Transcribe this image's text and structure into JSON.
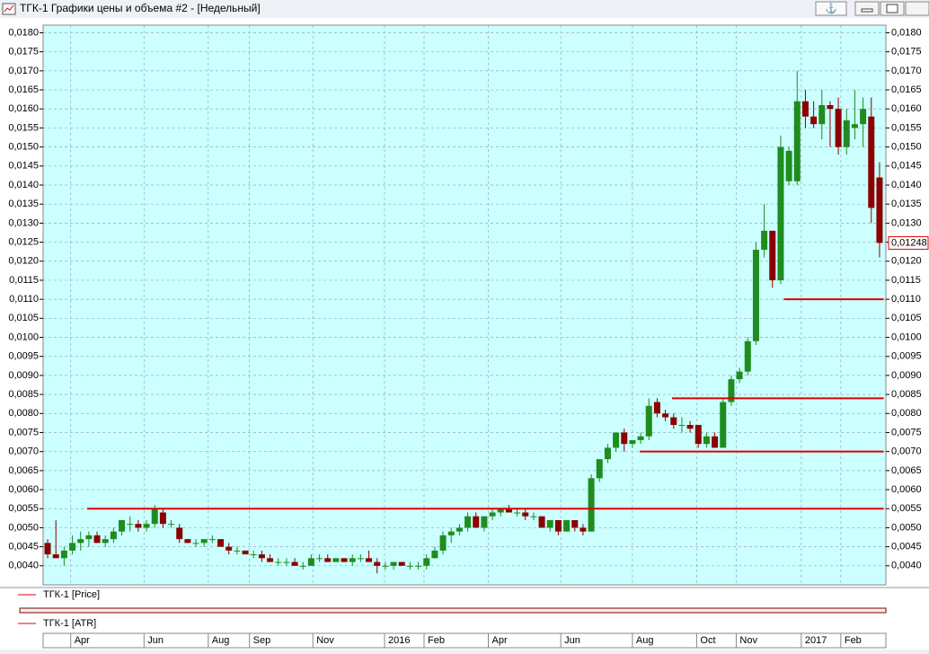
{
  "window_title": "ТГК-1 Графики цены и объема #2 - [Недельный]",
  "chart_data": {
    "type": "candlestick",
    "background": "#ccffff",
    "up_color": "#1e8c1e",
    "down_color": "#8b0000",
    "level_color": "#e00000",
    "grid": true,
    "ylim": [
      0.0035,
      0.0182
    ],
    "yticks": [
      {
        "value": 0.004,
        "label": "0,0040"
      },
      {
        "value": 0.0045,
        "label": "0,0045"
      },
      {
        "value": 0.005,
        "label": "0,0050"
      },
      {
        "value": 0.0055,
        "label": "0,0055"
      },
      {
        "value": 0.006,
        "label": "0,0060"
      },
      {
        "value": 0.0065,
        "label": "0,0065"
      },
      {
        "value": 0.007,
        "label": "0,0070"
      },
      {
        "value": 0.0075,
        "label": "0,0075"
      },
      {
        "value": 0.008,
        "label": "0,0080"
      },
      {
        "value": 0.0085,
        "label": "0,0085"
      },
      {
        "value": 0.009,
        "label": "0,0090"
      },
      {
        "value": 0.0095,
        "label": "0,0095"
      },
      {
        "value": 0.01,
        "label": "0,0100"
      },
      {
        "value": 0.0105,
        "label": "0,0105"
      },
      {
        "value": 0.011,
        "label": "0,0110"
      },
      {
        "value": 0.0115,
        "label": "0,0115"
      },
      {
        "value": 0.012,
        "label": "0,0120"
      },
      {
        "value": 0.0125,
        "label": "0,0125"
      },
      {
        "value": 0.013,
        "label": "0,0130"
      },
      {
        "value": 0.0135,
        "label": "0,0135"
      },
      {
        "value": 0.014,
        "label": "0,0140"
      },
      {
        "value": 0.0145,
        "label": "0,0145"
      },
      {
        "value": 0.015,
        "label": "0,0150"
      },
      {
        "value": 0.0155,
        "label": "0,0155"
      },
      {
        "value": 0.016,
        "label": "0,0160"
      },
      {
        "value": 0.0165,
        "label": "0,0165"
      },
      {
        "value": 0.017,
        "label": "0,0170"
      },
      {
        "value": 0.0175,
        "label": "0,0175"
      },
      {
        "value": 0.018,
        "label": "0,0180"
      }
    ],
    "xlim": [
      -0.55,
      101.77
    ],
    "xticks": [
      {
        "value": 2.8,
        "label": "Apr"
      },
      {
        "value": 11.7,
        "label": "Jun"
      },
      {
        "value": 19.5,
        "label": "Aug"
      },
      {
        "value": 24.5,
        "label": "Sep"
      },
      {
        "value": 32.2,
        "label": "Nov"
      },
      {
        "value": 40.9,
        "label": "2016"
      },
      {
        "value": 45.7,
        "label": "Feb"
      },
      {
        "value": 53.5,
        "label": "Apr"
      },
      {
        "value": 62.3,
        "label": "Jun"
      },
      {
        "value": 71,
        "label": "Aug"
      },
      {
        "value": 78.8,
        "label": "Oct"
      },
      {
        "value": 83.6,
        "label": "Nov"
      },
      {
        "value": 91.5,
        "label": "2017"
      },
      {
        "value": 96.3,
        "label": "Feb"
      }
    ],
    "series": [
      {
        "name": "ТГК-1 [Price]",
        "color": "#e00000",
        "open": [
          0.0046,
          0.0043,
          0.0042,
          0.0044,
          0.0046,
          0.0047,
          0.0048,
          0.0046,
          0.0047,
          0.0049,
          0.0051,
          0.0051,
          0.005,
          0.0051,
          0.0054,
          0.0051,
          0.005,
          0.0047,
          0.0046,
          0.0046,
          0.0047,
          0.0047,
          0.0045,
          0.0044,
          0.0044,
          0.0043,
          0.0043,
          0.0042,
          0.0041,
          0.0041,
          0.0041,
          0.004,
          0.004,
          0.0042,
          0.0042,
          0.0041,
          0.0042,
          0.0041,
          0.0042,
          0.0042,
          0.0041,
          0.004,
          0.004,
          0.0041,
          0.004,
          0.004,
          0.004,
          0.0042,
          0.0044,
          0.0048,
          0.0049,
          0.005,
          0.0053,
          0.005,
          0.0053,
          0.0054,
          0.0055,
          0.0054,
          0.0054,
          0.0053,
          0.0053,
          0.005,
          0.0052,
          0.0049,
          0.0052,
          0.005,
          0.0049,
          0.0063,
          0.0068,
          0.0071,
          0.0075,
          0.0072,
          0.0073,
          0.0074,
          0.0083,
          0.008,
          0.0079,
          0.0077,
          0.0077,
          0.0077,
          0.0072,
          0.0074,
          0.0071,
          0.0083,
          0.0089,
          0.0091,
          0.0099,
          0.0123,
          0.0128,
          0.0115,
          0.0141,
          0.0141,
          0.0162,
          0.0158,
          0.0156,
          0.0161,
          0.016,
          0.015,
          0.0155,
          0.0156,
          0.0158,
          0.0142
        ],
        "high": [
          0.0047,
          0.0052,
          0.0045,
          0.0048,
          0.0049,
          0.0049,
          0.0049,
          0.0048,
          0.005,
          0.0052,
          0.0053,
          0.0052,
          0.0052,
          0.0056,
          0.0055,
          0.0052,
          0.0051,
          0.0047,
          0.0047,
          0.0047,
          0.0048,
          0.0047,
          0.0046,
          0.0045,
          0.0044,
          0.0044,
          0.0044,
          0.0043,
          0.0042,
          0.0042,
          0.0042,
          0.0041,
          0.0043,
          0.0043,
          0.0043,
          0.0042,
          0.0042,
          0.0043,
          0.0043,
          0.0044,
          0.0042,
          0.0041,
          0.0041,
          0.0041,
          0.0041,
          0.0041,
          0.0043,
          0.0045,
          0.0049,
          0.005,
          0.0051,
          0.0054,
          0.0054,
          0.0053,
          0.0055,
          0.0055,
          0.0056,
          0.0055,
          0.0055,
          0.0054,
          0.0053,
          0.0052,
          0.0052,
          0.0052,
          0.0052,
          0.0051,
          0.0064,
          0.0068,
          0.0072,
          0.0075,
          0.0076,
          0.0073,
          0.0075,
          0.0084,
          0.0084,
          0.0081,
          0.008,
          0.0079,
          0.0078,
          0.0077,
          0.0075,
          0.0075,
          0.0084,
          0.009,
          0.0092,
          0.01,
          0.0125,
          0.0135,
          0.0128,
          0.0153,
          0.015,
          0.017,
          0.0165,
          0.0162,
          0.0165,
          0.0162,
          0.0163,
          0.016,
          0.0165,
          0.0163,
          0.0163,
          0.0146
        ],
        "low": [
          0.0042,
          0.0042,
          0.004,
          0.0043,
          0.0044,
          0.0045,
          0.0046,
          0.0045,
          0.0046,
          0.0048,
          0.0049,
          0.0049,
          0.0049,
          0.005,
          0.005,
          0.005,
          0.0046,
          0.0046,
          0.0045,
          0.0045,
          0.0046,
          0.0045,
          0.0043,
          0.0043,
          0.0043,
          0.0042,
          0.0041,
          0.0041,
          0.004,
          0.004,
          0.004,
          0.0039,
          0.004,
          0.0041,
          0.0041,
          0.0041,
          0.0041,
          0.004,
          0.0041,
          0.0041,
          0.0038,
          0.0039,
          0.0039,
          0.004,
          0.0039,
          0.0039,
          0.0039,
          0.0042,
          0.0043,
          0.0046,
          0.0048,
          0.0049,
          0.005,
          0.0049,
          0.0052,
          0.0053,
          0.0054,
          0.0053,
          0.0052,
          0.0052,
          0.005,
          0.0049,
          0.0048,
          0.0049,
          0.0049,
          0.0048,
          0.0049,
          0.0062,
          0.0067,
          0.007,
          0.007,
          0.0071,
          0.0072,
          0.0073,
          0.0079,
          0.0078,
          0.0076,
          0.0075,
          0.0075,
          0.0071,
          0.0071,
          0.0071,
          0.0071,
          0.0082,
          0.0088,
          0.009,
          0.0098,
          0.0121,
          0.0113,
          0.0114,
          0.014,
          0.014,
          0.0155,
          0.0155,
          0.0152,
          0.015,
          0.0148,
          0.0148,
          0.0152,
          0.015,
          0.013,
          0.0121
        ],
        "close": [
          0.0043,
          0.0042,
          0.0044,
          0.0046,
          0.0047,
          0.0048,
          0.0046,
          0.0047,
          0.0049,
          0.0052,
          0.0051,
          0.005,
          0.0051,
          0.0055,
          0.0051,
          0.0051,
          0.0047,
          0.0046,
          0.0046,
          0.0047,
          0.0047,
          0.0045,
          0.0044,
          0.0044,
          0.0043,
          0.0043,
          0.0042,
          0.0041,
          0.0041,
          0.0041,
          0.004,
          0.004,
          0.0042,
          0.0042,
          0.0041,
          0.0042,
          0.0041,
          0.0042,
          0.0042,
          0.0041,
          0.004,
          0.004,
          0.0041,
          0.004,
          0.004,
          0.004,
          0.0042,
          0.0044,
          0.0048,
          0.0049,
          0.005,
          0.0053,
          0.005,
          0.0053,
          0.0054,
          0.0055,
          0.0054,
          0.0054,
          0.0053,
          0.0053,
          0.005,
          0.0052,
          0.0049,
          0.0052,
          0.005,
          0.0049,
          0.0063,
          0.0068,
          0.0071,
          0.0075,
          0.0072,
          0.0073,
          0.0074,
          0.0082,
          0.008,
          0.0079,
          0.0077,
          0.0077,
          0.0076,
          0.0072,
          0.0074,
          0.0071,
          0.0083,
          0.0089,
          0.0091,
          0.0099,
          0.0123,
          0.0128,
          0.0115,
          0.015,
          0.0149,
          0.0162,
          0.0158,
          0.0156,
          0.0161,
          0.016,
          0.015,
          0.0157,
          0.0156,
          0.016,
          0.0134,
          0.01248
        ]
      }
    ],
    "levels": [
      {
        "value": 0.0055,
        "x": [
          4.8,
          53.2
        ]
      },
      {
        "value": 0.0055,
        "x": [
          53.2,
          101.5
        ]
      },
      {
        "value": 0.007,
        "x": [
          71.9,
          101.5
        ]
      },
      {
        "value": 0.0084,
        "x": [
          75.8,
          101.5
        ]
      },
      {
        "value": 0.011,
        "x": [
          89.4,
          101.5
        ]
      }
    ],
    "last_price": {
      "value": 0.01248,
      "label": "0,01248"
    },
    "indicator_pane": {
      "name": "ТГК-1 [ATR]"
    }
  }
}
